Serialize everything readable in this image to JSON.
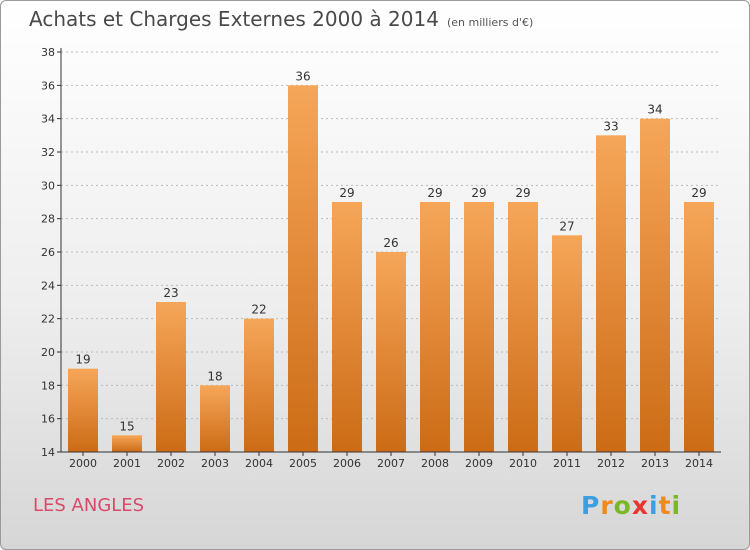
{
  "header": {
    "title": "Achats et Charges Externes 2000 à 2014",
    "subtitle": "(en milliers d'€)"
  },
  "footer": {
    "location": "LES ANGLES",
    "logo_letters": [
      "P",
      "r",
      "o",
      "x",
      "i",
      "t",
      "i"
    ],
    "logo_colors": [
      "#3aa0e0",
      "#f08a1c",
      "#7ab82a",
      "#e8352f",
      "#3aa0e0",
      "#f08a1c",
      "#7ab82a"
    ]
  },
  "colors": {
    "bar_top": "#f6a658",
    "bar_bottom": "#cc6b16",
    "axis": "#333333",
    "grid": "#bcbcbc"
  },
  "chart_data": {
    "type": "bar",
    "title": "Achats et Charges Externes 2000 à 2014",
    "subtitle": "(en milliers d'€)",
    "categories": [
      "2000",
      "2001",
      "2002",
      "2003",
      "2004",
      "2005",
      "2006",
      "2007",
      "2008",
      "2009",
      "2010",
      "2011",
      "2012",
      "2013",
      "2014"
    ],
    "values": [
      19,
      15,
      23,
      18,
      22,
      36,
      29,
      26,
      29,
      29,
      29,
      27,
      33,
      34,
      29
    ],
    "ylim": [
      14,
      38
    ],
    "yticks": [
      14,
      16,
      18,
      20,
      22,
      24,
      26,
      28,
      30,
      32,
      34,
      36,
      38
    ],
    "grid": true,
    "xlabel": "",
    "ylabel": ""
  }
}
